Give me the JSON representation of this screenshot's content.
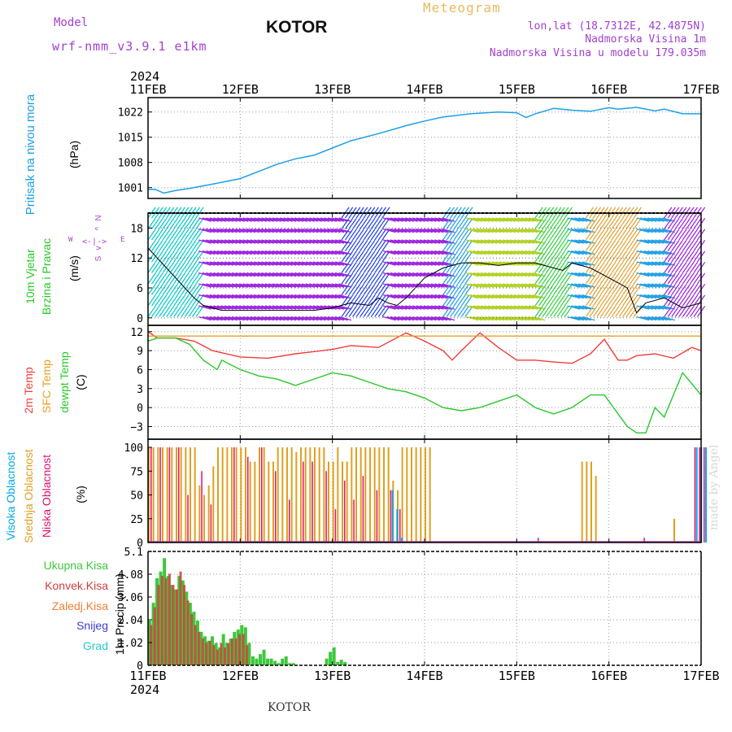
{
  "header": {
    "model_label": "Model",
    "model_name": "wrf-nmm_v3.9.1 e1km",
    "title": "KOTOR",
    "product": "Meteogram",
    "lonlat": "lon,lat (18.7312E, 42.4875N)",
    "elevation": "Nadmorska Visina 1m",
    "model_elevation": "Nadmorska Visina u modelu 179.035m",
    "footer_station": "KOTOR",
    "credit": "made by Angel"
  },
  "colors": {
    "pressure": "#1ba0e6",
    "temp2m": "#f03c3c",
    "sfc": "#e8a020",
    "dewpt": "#28c828",
    "high_cloud": "#00a8e8",
    "mid_cloud": "#e0a020",
    "low_cloud": "#e0106e",
    "precip_total": "#3cc83c",
    "precip_conv": "#d23c3c",
    "precip_fz": "#f08030",
    "snow": "#3c3cd2",
    "hail": "#28c8c8"
  },
  "chart_data": [
    {
      "type": "line",
      "panel": "pressure",
      "title": "Pritisak na nivou mora",
      "ylabel": "(hPa)",
      "top_year": "2024",
      "x_ticks": [
        "11FEB",
        "12FEB",
        "13FEB",
        "14FEB",
        "15FEB",
        "16FEB",
        "17FEB"
      ],
      "ylim": [
        998,
        1026
      ],
      "y_ticks": [
        1001,
        1008,
        1015,
        1022
      ],
      "series": [
        {
          "x": [
            0,
            0.08,
            0.17,
            0.3,
            0.45,
            0.6,
            0.8,
            1.0,
            1.2,
            1.4,
            1.6,
            1.8,
            2.0,
            2.2,
            2.5,
            2.8,
            3.0,
            3.2,
            3.5,
            3.8,
            4.0,
            4.1,
            4.2,
            4.4,
            4.6,
            4.8,
            5.0,
            5.1,
            5.3,
            5.5,
            5.6,
            5.8,
            6.0
          ],
          "y": [
            1000.5,
            1000.5,
            999.5,
            1000.2,
            1000.8,
            1001.5,
            1002.5,
            1003.5,
            1005.5,
            1007.5,
            1009,
            1010,
            1012,
            1014,
            1016,
            1018.2,
            1019.5,
            1020.6,
            1021.5,
            1022,
            1021.8,
            1020.5,
            1021.5,
            1023,
            1022.5,
            1022.2,
            1023.2,
            1022.8,
            1023.3,
            1022.3,
            1022.8,
            1021.5,
            1021.5
          ]
        }
      ]
    },
    {
      "type": "line",
      "panel": "wind",
      "title": "10m Vjetar Brzina i Pravac",
      "ylabel": "(m/s)",
      "compass": [
        "N",
        "^",
        "<-|->",
        "v",
        "W",
        "E",
        "S"
      ],
      "ylim": [
        -1.5,
        21
      ],
      "y_ticks": [
        0,
        6,
        12,
        18
      ],
      "speed_x": [
        0,
        0.1,
        0.2,
        0.3,
        0.4,
        0.5,
        0.6,
        0.8,
        1.0,
        1.2,
        1.4,
        1.6,
        1.8,
        2.0,
        2.2,
        2.4,
        2.5,
        2.6,
        2.7,
        2.8,
        3.0,
        3.2,
        3.4,
        3.6,
        3.8,
        4.0,
        4.2,
        4.4,
        4.5,
        4.6,
        4.8,
        5.0,
        5.2,
        5.3,
        5.4,
        5.6,
        5.8,
        6.0
      ],
      "speed_y": [
        14,
        12,
        10,
        8,
        6,
        4,
        2.5,
        1.5,
        1.5,
        1.5,
        1.5,
        1.5,
        1.5,
        2,
        3,
        2.5,
        4,
        3,
        2.5,
        4,
        8,
        10,
        11,
        11,
        10.5,
        11,
        11,
        10,
        9.5,
        11,
        10,
        8,
        6,
        1,
        3,
        4,
        2,
        3
      ],
      "arrow_x_ranges": [
        [
          0,
          0.55
        ],
        [
          0.55,
          2.1
        ],
        [
          2.1,
          2.55
        ],
        [
          2.55,
          3.2
        ],
        [
          3.2,
          3.45
        ],
        [
          3.45,
          4.2
        ],
        [
          4.2,
          4.55
        ],
        [
          4.55,
          4.75
        ],
        [
          4.75,
          5.3
        ],
        [
          5.3,
          5.6
        ],
        [
          5.6,
          6.0
        ]
      ],
      "arrow_colors": [
        "#00c8c8",
        "#9b20e0",
        "#2040e8",
        "#9b20e0",
        "#1ea0e6",
        "#b0d020",
        "#30d040",
        "#1ea0e6",
        "#e0a030",
        "#1ea0e6",
        "#9b20e0"
      ]
    },
    {
      "type": "line",
      "panel": "temperature",
      "titles": [
        "2m Temp",
        "SFC Temp",
        "dewpt Temp"
      ],
      "ylabel": "(C)",
      "ylim": [
        -5,
        13
      ],
      "y_ticks": [
        12,
        9,
        6,
        3,
        0,
        -3
      ],
      "y_tick_labels": [
        "12",
        "9",
        "6",
        "3",
        "0",
        "−3"
      ],
      "series": [
        {
          "name": "2m Temp",
          "x": [
            0,
            0.05,
            0.1,
            0.3,
            0.5,
            0.7,
            1.0,
            1.3,
            1.6,
            2.0,
            2.2,
            2.5,
            2.8,
            3.0,
            3.2,
            3.3,
            3.4,
            3.6,
            3.8,
            4.0,
            4.2,
            4.4,
            4.6,
            4.8,
            4.95,
            5.1,
            5.2,
            5.3,
            5.5,
            5.7,
            5.9,
            6.0
          ],
          "y": [
            12,
            11.5,
            11,
            11,
            10.5,
            9,
            8,
            7.8,
            8.5,
            9.2,
            9.8,
            9.5,
            11.8,
            10.5,
            9,
            7.5,
            9,
            11.8,
            9.5,
            7.5,
            7.5,
            7.2,
            7,
            8.5,
            10.8,
            7.5,
            7.5,
            8.2,
            8.5,
            7.8,
            9.5,
            9
          ]
        },
        {
          "name": "SFC Temp",
          "x": [
            0,
            6.0
          ],
          "y": [
            11.3,
            11.3
          ]
        },
        {
          "name": "dewpt Temp",
          "x": [
            0,
            0.1,
            0.3,
            0.45,
            0.6,
            0.75,
            0.8,
            1.0,
            1.2,
            1.4,
            1.6,
            1.8,
            2.0,
            2.2,
            2.4,
            2.6,
            2.8,
            3.0,
            3.2,
            3.4,
            3.6,
            3.8,
            4.0,
            4.2,
            4.4,
            4.6,
            4.8,
            4.95,
            5.1,
            5.2,
            5.3,
            5.4,
            5.5,
            5.6,
            5.8,
            6.0
          ],
          "y": [
            10.5,
            11,
            11,
            10,
            7.5,
            6,
            7.5,
            6,
            5,
            4.5,
            3.5,
            4.5,
            5.5,
            5,
            4,
            3,
            2.5,
            1.5,
            0,
            -0.5,
            0,
            1,
            2,
            0,
            -1,
            0,
            2,
            2,
            -1,
            -3,
            -4,
            -4,
            0,
            -1.5,
            5.5,
            2
          ]
        }
      ]
    },
    {
      "type": "bar",
      "panel": "clouds",
      "titles": [
        "Visoka Oblacnost",
        "Srednja Oblacnost",
        "Niska Oblacnost"
      ],
      "ylabel": "(%)",
      "ylim": [
        0,
        100
      ],
      "y_ticks": [
        0,
        25,
        50,
        75,
        100
      ],
      "mid_x": [
        0,
        0.05,
        0.1,
        0.15,
        0.2,
        0.25,
        0.3,
        0.35,
        0.4,
        0.45,
        0.5,
        0.55,
        0.6,
        0.65,
        0.7,
        0.75,
        0.8,
        0.85,
        0.9,
        0.95,
        1.0,
        1.05,
        1.1,
        1.15,
        1.2,
        1.25,
        1.3,
        1.35,
        1.4,
        1.45,
        1.5,
        1.55,
        1.6,
        1.65,
        1.7,
        1.75,
        1.8,
        1.85,
        1.9,
        1.95,
        2.0,
        2.05,
        2.1,
        2.15,
        2.2,
        2.25,
        2.3,
        2.35,
        2.4,
        2.45,
        2.5,
        2.55,
        2.6,
        2.65,
        2.7,
        2.75,
        2.8,
        2.85,
        2.9,
        2.95,
        3.0,
        3.05,
        4.7,
        4.75,
        4.8,
        4.85,
        5.7
      ],
      "mid_y": [
        100,
        100,
        100,
        100,
        100,
        100,
        100,
        100,
        100,
        100,
        100,
        60,
        50,
        60,
        80,
        100,
        100,
        100,
        100,
        100,
        100,
        100,
        85,
        85,
        100,
        100,
        85,
        85,
        100,
        100,
        100,
        100,
        95,
        100,
        100,
        100,
        100,
        100,
        100,
        85,
        85,
        100,
        85,
        85,
        100,
        100,
        100,
        100,
        100,
        100,
        100,
        100,
        100,
        65,
        55,
        100,
        100,
        100,
        100,
        100,
        100,
        100,
        85,
        85,
        85,
        70,
        25
      ],
      "low_x": [
        0,
        0.1,
        0.2,
        0.3,
        0.4,
        0.55,
        0.65,
        0.9,
        1.05,
        1.2,
        1.35,
        1.5,
        1.65,
        1.75,
        1.9,
        2.0,
        2.1,
        2.2,
        2.3,
        2.45,
        2.6,
        2.7,
        4.2,
        5.35,
        5.9,
        5.95,
        6.0
      ],
      "low_y": [
        100,
        100,
        100,
        100,
        50,
        75,
        40,
        100,
        90,
        100,
        75,
        45,
        85,
        85,
        75,
        35,
        65,
        45,
        70,
        55,
        55,
        35,
        5,
        5,
        100,
        100,
        100
      ],
      "high_x": [
        2.6,
        2.65,
        2.7,
        5.9,
        5.95,
        6.0
      ],
      "high_y": [
        55,
        35,
        5,
        100,
        100,
        100
      ]
    },
    {
      "type": "bar",
      "panel": "precip",
      "titles": [
        "Ukupna Kisa",
        "Konvek.Kisa",
        "Zaledj.Kisa",
        "Snijeg",
        "Grad"
      ],
      "ylabel": "1hr Precip (mm)",
      "bottom_year": "2024",
      "ylim": [
        0,
        5.1
      ],
      "y_ticks": [
        0,
        1.02,
        2.04,
        3.06,
        4.08,
        5.1
      ],
      "x_ticks": [
        "11FEB",
        "12FEB",
        "13FEB",
        "14FEB",
        "15FEB",
        "16FEB",
        "17FEB"
      ],
      "total_x": [
        0.0,
        0.04,
        0.08,
        0.12,
        0.16,
        0.2,
        0.24,
        0.28,
        0.32,
        0.36,
        0.4,
        0.44,
        0.48,
        0.52,
        0.56,
        0.6,
        0.64,
        0.68,
        0.72,
        0.76,
        0.8,
        0.84,
        0.88,
        0.92,
        0.96,
        1.0,
        1.04,
        1.08,
        1.12,
        1.16,
        1.2,
        1.24,
        1.28,
        1.32,
        1.36,
        1.4,
        1.44,
        1.48,
        1.52,
        1.56,
        1.6,
        1.64,
        1.92,
        1.96,
        2.0,
        2.04,
        2.08,
        2.12
      ],
      "total_y": [
        2.0,
        2.8,
        3.9,
        4.2,
        4.8,
        4.0,
        3.6,
        3.4,
        4.0,
        3.8,
        3.3,
        2.8,
        2.4,
        2.0,
        1.5,
        1.3,
        1.1,
        1.3,
        1.0,
        0.8,
        1.4,
        1.0,
        1.2,
        1.5,
        1.6,
        1.8,
        1.7,
        1.0,
        0.4,
        0.3,
        0.5,
        0.7,
        0.3,
        0.3,
        0.2,
        0.1,
        0.3,
        0.4,
        0.1,
        0.1,
        0.0,
        0.0,
        0.3,
        0.6,
        0.8,
        0.15,
        0.25,
        0.15
      ],
      "conv_x": [
        0.02,
        0.06,
        0.1,
        0.14,
        0.18,
        0.22,
        0.26,
        0.3,
        0.34,
        0.38,
        0.42,
        0.46,
        0.5,
        0.54,
        0.58,
        0.62,
        0.66,
        0.7,
        0.74,
        0.78,
        0.82,
        0.86,
        0.9,
        0.94,
        0.98,
        1.02,
        1.06
      ],
      "conv_y": [
        1.8,
        2.6,
        3.6,
        4.0,
        3.9,
        4.1,
        3.6,
        3.4,
        4.2,
        3.6,
        2.9,
        2.3,
        1.8,
        1.5,
        1.2,
        1.0,
        1.1,
        0.9,
        0.7,
        1.0,
        0.8,
        1.0,
        1.2,
        1.2,
        1.4,
        1.4,
        0.9
      ]
    }
  ]
}
